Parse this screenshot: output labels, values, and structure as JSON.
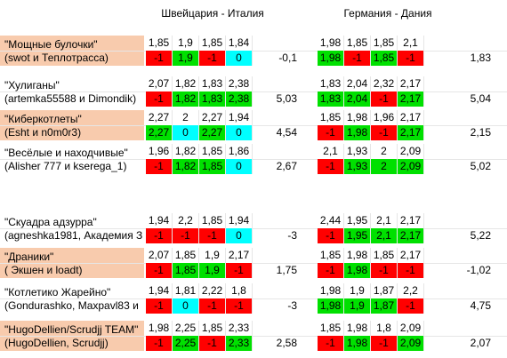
{
  "headers": {
    "match1": "Швейцария - Италия",
    "match2": "Германия - Дания"
  },
  "colors": {
    "red": "#FF0000",
    "green": "#00E000",
    "cyan": "#00FFFF",
    "peach": "#F8CBAD"
  },
  "teams": [
    {
      "name": "\"Мощные булочки\"",
      "members": "(swot и Теплотрасса)",
      "highlight": true,
      "odds1": [
        "1,85",
        "1,9",
        "1,85",
        "1,84"
      ],
      "res1": [
        "-1",
        "1,9",
        "-1",
        "0"
      ],
      "col1": [
        "red",
        "green",
        "red",
        "cyan"
      ],
      "score1": "-0,1",
      "odds2": [
        "1,98",
        "1,85",
        "1,85",
        "2,1"
      ],
      "res2": [
        "1,98",
        "-1",
        "1,85",
        "-1"
      ],
      "col2": [
        "green",
        "red",
        "green",
        "red"
      ],
      "score2": "1,83"
    },
    {
      "name": "\"Хулиганы\"",
      "members": "(artemka55588 и Dimondik)",
      "highlight": false,
      "odds1": [
        "2,07",
        "1,82",
        "1,83",
        "2,38"
      ],
      "res1": [
        "-1",
        "1,82",
        "1,83",
        "2,38"
      ],
      "col1": [
        "red",
        "green",
        "green",
        "green"
      ],
      "score1": "5,03",
      "odds2": [
        "1,83",
        "2,04",
        "2,32",
        "2,17"
      ],
      "res2": [
        "1,83",
        "2,04",
        "-1",
        "2,17"
      ],
      "col2": [
        "green",
        "green",
        "red",
        "green"
      ],
      "score2": "5,04"
    },
    {
      "name": "\"Киберкотлеты\"",
      "members": "(Esht и n0m0r3)",
      "highlight": true,
      "odds1": [
        "2,27",
        "2",
        "2,27",
        "1,94"
      ],
      "res1": [
        "2,27",
        "0",
        "2,27",
        "0"
      ],
      "col1": [
        "green",
        "cyan",
        "green",
        "cyan"
      ],
      "score1": "4,54",
      "odds2": [
        "1,85",
        "1,98",
        "1,96",
        "2,17"
      ],
      "res2": [
        "-1",
        "1,98",
        "-1",
        "2,17"
      ],
      "col2": [
        "red",
        "green",
        "red",
        "green"
      ],
      "score2": "2,15"
    },
    {
      "name": "\"Весёлые и находчивые\"",
      "members": "(Alisher 777 и kserega_1)",
      "highlight": false,
      "odds1": [
        "1,96",
        "1,82",
        "1,85",
        "1,86"
      ],
      "res1": [
        "-1",
        "1,82",
        "1,85",
        "0"
      ],
      "col1": [
        "red",
        "green",
        "green",
        "cyan"
      ],
      "score1": "2,67",
      "odds2": [
        "2,1",
        "1,93",
        "2",
        "2,09"
      ],
      "res2": [
        "-1",
        "1,93",
        "2",
        "2,09"
      ],
      "col2": [
        "red",
        "green",
        "green",
        "green"
      ],
      "score2": "5,02"
    },
    {
      "name": "\"Скуадра адзурра\"",
      "members": "(agneshka1981, Академия З",
      "highlight": false,
      "odds1": [
        "1,94",
        "2,2",
        "1,85",
        "1,94"
      ],
      "res1": [
        "-1",
        "-1",
        "-1",
        "0"
      ],
      "col1": [
        "red",
        "red",
        "red",
        "cyan"
      ],
      "score1": "-3",
      "odds2": [
        "2,44",
        "1,95",
        "2,1",
        "2,17"
      ],
      "res2": [
        "-1",
        "1,95",
        "2,1",
        "2,17"
      ],
      "col2": [
        "red",
        "green",
        "green",
        "green"
      ],
      "score2": "5,22"
    },
    {
      "name": "\"Драники\"",
      "members": "( Экшен и loadt)",
      "highlight": true,
      "odds1": [
        "2,07",
        "1,85",
        "1,9",
        "2,17"
      ],
      "res1": [
        "-1",
        "1,85",
        "1,9",
        "-1"
      ],
      "col1": [
        "red",
        "green",
        "green",
        "red"
      ],
      "score1": "1,75",
      "odds2": [
        "1,85",
        "1,98",
        "1,85",
        "2,17"
      ],
      "res2": [
        "-1",
        "1,98",
        "-1",
        "-1"
      ],
      "col2": [
        "red",
        "green",
        "red",
        "red"
      ],
      "score2": "-1,02"
    },
    {
      "name": "\"Котлетико Жарейно\"",
      "members": "(Gondurashko, Maxpavl83 и",
      "highlight": false,
      "odds1": [
        "1,94",
        "1,81",
        "2,22",
        "1,8"
      ],
      "res1": [
        "-1",
        "0",
        "-1",
        "-1"
      ],
      "col1": [
        "red",
        "cyan",
        "red",
        "red"
      ],
      "score1": "-3",
      "odds2": [
        "1,98",
        "1,9",
        "1,87",
        "2,2"
      ],
      "res2": [
        "1,98",
        "1,9",
        "1,87",
        "-1"
      ],
      "col2": [
        "green",
        "green",
        "green",
        "red"
      ],
      "score2": "4,75"
    },
    {
      "name": "\"HugoDellien/Scrudjj TEAM\"",
      "members": "(HugoDellien, Scrudjj)",
      "highlight": true,
      "odds1": [
        "1,98",
        "2,25",
        "1,85",
        "2,33"
      ],
      "res1": [
        "-1",
        "2,25",
        "-1",
        "2,33"
      ],
      "col1": [
        "red",
        "green",
        "red",
        "green"
      ],
      "score1": "2,58",
      "odds2": [
        "1,85",
        "1,98",
        "1,8",
        "2,09"
      ],
      "res2": [
        "-1",
        "1,98",
        "-1",
        "2,09"
      ],
      "col2": [
        "red",
        "green",
        "red",
        "green"
      ],
      "score2": "2,07"
    }
  ]
}
